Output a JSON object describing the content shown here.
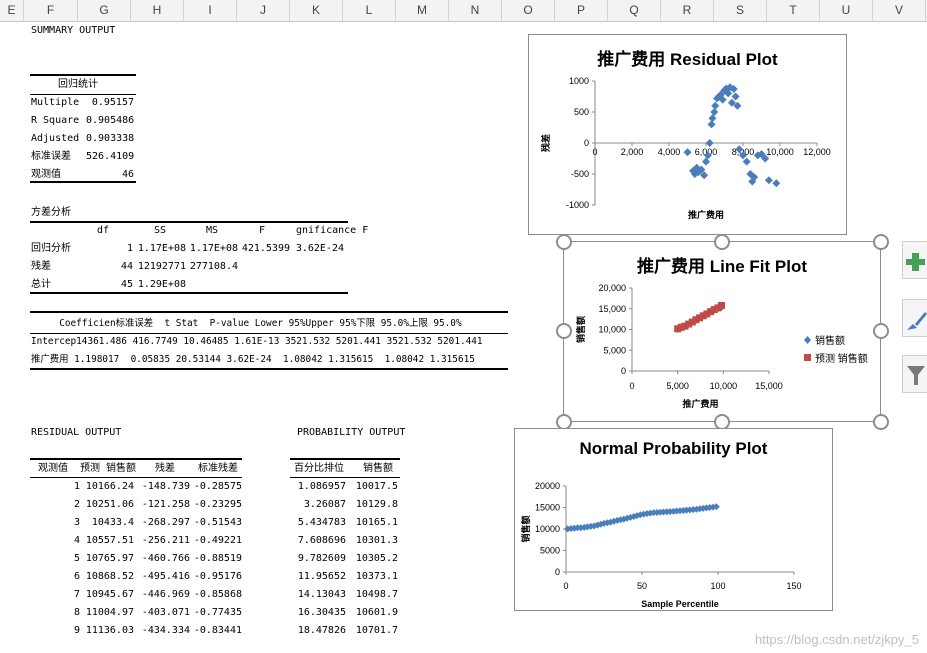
{
  "columns": [
    "E",
    "F",
    "G",
    "H",
    "I",
    "J",
    "K",
    "L",
    "M",
    "N",
    "O",
    "P",
    "Q",
    "R",
    "S",
    "T",
    "U",
    "V"
  ],
  "summary": {
    "title": "SUMMARY OUTPUT",
    "regression_header": "回归统计",
    "regression_stats": [
      {
        "label": "Multiple",
        "value": "0.95157"
      },
      {
        "label": "R Square",
        "value": "0.905486"
      },
      {
        "label": "Adjusted",
        "value": "0.903338"
      },
      {
        "label": "标准误差",
        "value": "526.4109"
      },
      {
        "label": "观测值",
        "value": "46"
      }
    ]
  },
  "anova": {
    "title": "方差分析",
    "headers": [
      "df",
      "SS",
      "MS",
      "F",
      "gnificance F"
    ],
    "rows": [
      {
        "label": "回归分析",
        "cells": [
          "1",
          "1.17E+08",
          "1.17E+08",
          "421.5399",
          "3.62E-24"
        ]
      },
      {
        "label": "残差",
        "cells": [
          "44",
          "12192771",
          "277108.4",
          "",
          ""
        ]
      },
      {
        "label": "总计",
        "cells": [
          "45",
          "1.29E+08",
          "",
          "",
          ""
        ]
      }
    ]
  },
  "coef": {
    "header_line": "     Coefficien标准误差  t Stat  P-value Lower 95%Upper 95%下限 95.0%上限 95.0%",
    "rows": [
      "Intercep14361.486 416.7749 10.46485 1.61E-13 3521.532 5201.441 3521.532 5201.441",
      "推广费用 1.198017  0.05835 20.53144 3.62E-24  1.08042 1.315615  1.08042 1.315615"
    ]
  },
  "residual_output": {
    "title": "RESIDUAL OUTPUT",
    "headers": [
      "观测值",
      "预测 销售额",
      "残差",
      "标准残差"
    ],
    "rows": [
      [
        "1",
        "10166.24",
        "-148.739",
        "-0.28575"
      ],
      [
        "2",
        "10251.06",
        "-121.258",
        "-0.23295"
      ],
      [
        "3",
        "10433.4",
        "-268.297",
        "-0.51543"
      ],
      [
        "4",
        "10557.51",
        "-256.211",
        "-0.49221"
      ],
      [
        "5",
        "10765.97",
        "-460.766",
        "-0.88519"
      ],
      [
        "6",
        "10868.52",
        "-495.416",
        "-0.95176"
      ],
      [
        "7",
        "10945.67",
        "-446.969",
        "-0.85868"
      ],
      [
        "8",
        "11004.97",
        "-403.071",
        "-0.77435"
      ],
      [
        "9",
        "11136.03",
        "-434.334",
        "-0.83441"
      ]
    ]
  },
  "probability_output": {
    "title": "PROBABILITY OUTPUT",
    "headers": [
      "百分比排位",
      "销售额"
    ],
    "rows": [
      [
        "1.086957",
        "10017.5"
      ],
      [
        "3.26087",
        "10129.8"
      ],
      [
        "5.434783",
        "10165.1"
      ],
      [
        "7.608696",
        "10301.3"
      ],
      [
        "9.782609",
        "10305.2"
      ],
      [
        "11.95652",
        "10373.1"
      ],
      [
        "14.13043",
        "10498.7"
      ],
      [
        "16.30435",
        "10601.9"
      ],
      [
        "18.47826",
        "10701.7"
      ]
    ]
  },
  "chart_data": [
    {
      "type": "scatter",
      "title": "推广费用 Residual Plot",
      "xlabel": "推广费用",
      "ylabel": "残差",
      "xlim": [
        0,
        12000
      ],
      "ylim": [
        -1000,
        1000
      ],
      "xticks": [
        "0",
        "2,000",
        "4,000",
        "6,000",
        "8,000",
        "10,000",
        "12,000"
      ],
      "yticks": [
        "1000",
        "500",
        "0",
        "-500",
        "-1000"
      ],
      "color": "#4a7ebb",
      "series": [
        {
          "x": [
            5000,
            5300,
            5400,
            5500,
            5600,
            5750,
            5900,
            6000,
            6100,
            6200,
            6300,
            6350,
            6450,
            6500,
            6600,
            6700,
            6800,
            6900,
            7000,
            7100,
            7200,
            7300,
            7400,
            7500,
            7600,
            7700,
            7800,
            8000,
            8200,
            8400,
            8500,
            8600,
            8800,
            9000,
            9200,
            9400,
            9800
          ],
          "y": [
            -150,
            -450,
            -500,
            -400,
            -470,
            -430,
            -520,
            -300,
            -200,
            0,
            300,
            400,
            500,
            600,
            720,
            750,
            780,
            700,
            850,
            880,
            800,
            900,
            650,
            870,
            750,
            600,
            -100,
            -200,
            -300,
            -500,
            -620,
            -550,
            -200,
            -180,
            -250,
            -600,
            -650
          ]
        }
      ]
    },
    {
      "type": "scatter",
      "title": "推广费用 Line Fit  Plot",
      "xlabel": "推广费用",
      "ylabel": "销售额",
      "xlim": [
        0,
        15000
      ],
      "ylim": [
        0,
        20000
      ],
      "xticks": [
        "0",
        "5,000",
        "10,000",
        "15,000"
      ],
      "yticks": [
        "20,000",
        "15,000",
        "10,000",
        "5,000",
        "0"
      ],
      "legend_position": "right",
      "series": [
        {
          "name": "销售额",
          "color": "#4a7ebb",
          "x": [
            5000,
            5500,
            6000,
            6500,
            7000,
            7500,
            8000,
            8500,
            9000,
            9500,
            9800
          ],
          "y": [
            10017,
            10400,
            11000,
            11700,
            12300,
            12900,
            13600,
            14200,
            14800,
            15100,
            15300
          ]
        },
        {
          "name": "预测 销售额",
          "color": "#be4b48",
          "x": [
            5000,
            5400,
            5800,
            6200,
            6600,
            7000,
            7400,
            7800,
            8200,
            8600,
            9000,
            9400,
            9800
          ],
          "y": [
            10166,
            10560,
            10800,
            11300,
            11800,
            12350,
            12800,
            13300,
            13750,
            14300,
            14800,
            15200,
            15800
          ]
        }
      ]
    },
    {
      "type": "scatter",
      "title": "Normal Probability Plot",
      "xlabel": "Sample Percentile",
      "ylabel": "销售额",
      "xlim": [
        0,
        150
      ],
      "ylim": [
        0,
        20000
      ],
      "xticks": [
        "0",
        "50",
        "100",
        "150"
      ],
      "yticks": [
        "20000",
        "15000",
        "10000",
        "5000",
        "0"
      ],
      "color": "#4a7ebb",
      "series": [
        {
          "x": [
            1.1,
            3.3,
            5.4,
            7.6,
            9.8,
            12,
            14.1,
            16.3,
            18.5,
            20.7,
            22.8,
            25,
            27.2,
            29.3,
            31.5,
            33.7,
            35.9,
            38,
            40.2,
            42.4,
            44.6,
            46.7,
            48.9,
            51.1,
            53.3,
            55.4,
            57.6,
            59.8,
            62,
            64.1,
            66.3,
            68.5,
            70.7,
            72.8,
            75,
            77.2,
            79.3,
            81.5,
            83.7,
            85.9,
            88,
            90.2,
            92.4,
            94.6,
            96.7,
            98.9
          ],
          "y": [
            10017,
            10130,
            10165,
            10301,
            10305,
            10373,
            10499,
            10602,
            10702,
            10900,
            11100,
            11300,
            11450,
            11600,
            11800,
            12000,
            12150,
            12300,
            12500,
            12700,
            12900,
            13100,
            13300,
            13450,
            13600,
            13700,
            13800,
            13850,
            13900,
            13950,
            14000,
            14050,
            14100,
            14200,
            14250,
            14300,
            14400,
            14450,
            14500,
            14600,
            14700,
            14800,
            14900,
            15000,
            15100,
            15200
          ]
        }
      ]
    }
  ],
  "watermark": "https://blog.csdn.net/zjkpy_5"
}
